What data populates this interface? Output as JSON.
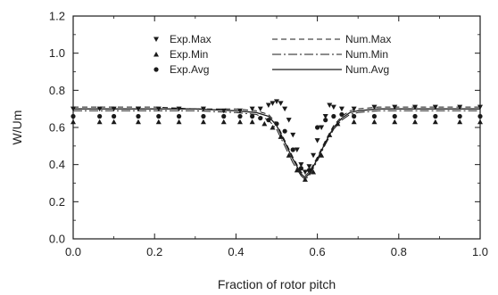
{
  "chart_data": {
    "type": "scatter",
    "title": "",
    "xlabel": "Fraction of rotor pitch",
    "ylabel": "W/Um",
    "xlim": [
      0.0,
      1.0
    ],
    "ylim": [
      0.0,
      1.2
    ],
    "xticks": [
      "0.0",
      "0.2",
      "0.4",
      "0.6",
      "0.8",
      "1.0"
    ],
    "yticks": [
      "0.0",
      "0.2",
      "0.4",
      "0.6",
      "0.8",
      "1.0",
      "1.2"
    ],
    "grid": false,
    "legend_position": "top-left",
    "colors": {
      "ink": "#1a1a1a"
    },
    "series": [
      {
        "name": "Exp.Max",
        "kind": "points",
        "marker": "triangle-down",
        "x": [
          0.0,
          0.065,
          0.1,
          0.16,
          0.21,
          0.26,
          0.32,
          0.37,
          0.41,
          0.44,
          0.46,
          0.48,
          0.49,
          0.5,
          0.51,
          0.52,
          0.53,
          0.54,
          0.55,
          0.56,
          0.57,
          0.58,
          0.59,
          0.6,
          0.61,
          0.62,
          0.63,
          0.64,
          0.66,
          0.69,
          0.74,
          0.79,
          0.84,
          0.89,
          0.95,
          1.0
        ],
        "y": [
          0.7,
          0.7,
          0.7,
          0.7,
          0.7,
          0.7,
          0.7,
          0.69,
          0.69,
          0.7,
          0.7,
          0.72,
          0.73,
          0.74,
          0.73,
          0.7,
          0.64,
          0.56,
          0.48,
          0.4,
          0.36,
          0.39,
          0.45,
          0.53,
          0.6,
          0.66,
          0.72,
          0.71,
          0.7,
          0.7,
          0.71,
          0.71,
          0.71,
          0.71,
          0.71,
          0.71
        ]
      },
      {
        "name": "Exp.Min",
        "kind": "points",
        "marker": "triangle-up",
        "x": [
          0.0,
          0.065,
          0.1,
          0.16,
          0.21,
          0.26,
          0.32,
          0.37,
          0.41,
          0.44,
          0.47,
          0.49,
          0.51,
          0.53,
          0.55,
          0.57,
          0.59,
          0.61,
          0.63,
          0.65,
          0.69,
          0.74,
          0.79,
          0.84,
          0.89,
          0.95,
          1.0
        ],
        "y": [
          0.63,
          0.63,
          0.63,
          0.63,
          0.63,
          0.63,
          0.63,
          0.63,
          0.63,
          0.63,
          0.62,
          0.6,
          0.55,
          0.45,
          0.37,
          0.32,
          0.36,
          0.45,
          0.56,
          0.62,
          0.63,
          0.63,
          0.63,
          0.63,
          0.63,
          0.63,
          0.63
        ]
      },
      {
        "name": "Exp.Avg",
        "kind": "points",
        "marker": "circle",
        "x": [
          0.0,
          0.065,
          0.1,
          0.16,
          0.21,
          0.26,
          0.32,
          0.37,
          0.41,
          0.44,
          0.46,
          0.48,
          0.5,
          0.52,
          0.54,
          0.56,
          0.58,
          0.6,
          0.62,
          0.64,
          0.66,
          0.69,
          0.74,
          0.79,
          0.84,
          0.89,
          0.95,
          1.0
        ],
        "y": [
          0.66,
          0.66,
          0.66,
          0.66,
          0.66,
          0.66,
          0.66,
          0.66,
          0.66,
          0.66,
          0.65,
          0.64,
          0.62,
          0.58,
          0.48,
          0.38,
          0.37,
          0.6,
          0.64,
          0.66,
          0.67,
          0.66,
          0.66,
          0.66,
          0.66,
          0.66,
          0.66,
          0.66
        ]
      },
      {
        "name": "Num.Max",
        "kind": "line",
        "dash": "dashed",
        "x": [
          0.0,
          0.1,
          0.2,
          0.3,
          0.4,
          0.45,
          0.48,
          0.5,
          0.52,
          0.54,
          0.56,
          0.57,
          0.58,
          0.6,
          0.62,
          0.64,
          0.66,
          0.68,
          0.7,
          0.75,
          0.8,
          0.9,
          1.0
        ],
        "y": [
          0.71,
          0.71,
          0.71,
          0.7,
          0.7,
          0.69,
          0.67,
          0.62,
          0.53,
          0.44,
          0.36,
          0.34,
          0.36,
          0.44,
          0.53,
          0.61,
          0.66,
          0.69,
          0.7,
          0.71,
          0.71,
          0.71,
          0.71
        ]
      },
      {
        "name": "Num.Min",
        "kind": "line",
        "dash": "dash-dot",
        "x": [
          0.0,
          0.1,
          0.2,
          0.3,
          0.4,
          0.45,
          0.48,
          0.5,
          0.52,
          0.54,
          0.56,
          0.57,
          0.58,
          0.6,
          0.62,
          0.64,
          0.66,
          0.68,
          0.7,
          0.75,
          0.8,
          0.9,
          1.0
        ],
        "y": [
          0.69,
          0.69,
          0.69,
          0.69,
          0.68,
          0.67,
          0.64,
          0.59,
          0.5,
          0.41,
          0.34,
          0.32,
          0.34,
          0.42,
          0.51,
          0.59,
          0.64,
          0.67,
          0.68,
          0.69,
          0.69,
          0.69,
          0.69
        ]
      },
      {
        "name": "Num.Avg",
        "kind": "line",
        "dash": "solid",
        "x": [
          0.0,
          0.1,
          0.2,
          0.3,
          0.4,
          0.45,
          0.48,
          0.5,
          0.52,
          0.54,
          0.56,
          0.57,
          0.58,
          0.6,
          0.62,
          0.64,
          0.66,
          0.68,
          0.7,
          0.75,
          0.8,
          0.9,
          1.0
        ],
        "y": [
          0.7,
          0.7,
          0.7,
          0.7,
          0.69,
          0.68,
          0.66,
          0.61,
          0.52,
          0.43,
          0.35,
          0.33,
          0.35,
          0.43,
          0.52,
          0.6,
          0.65,
          0.68,
          0.69,
          0.7,
          0.7,
          0.7,
          0.7
        ]
      }
    ]
  }
}
